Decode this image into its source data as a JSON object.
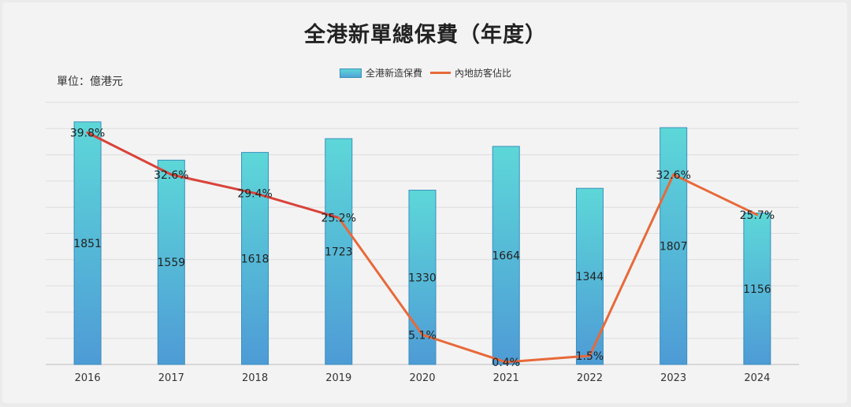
{
  "title": "全港新單總保費（年度）",
  "unit_label": "單位：億港元",
  "legend": {
    "bar_label": "全港新造保費",
    "line_label": "內地訪客佔比"
  },
  "colors": {
    "bar_top": "#5dd7d8",
    "bar_bottom": "#4e9bd6",
    "bar_border": "#3b8fbc",
    "line": "#e8693a",
    "line_early": "#d9433a"
  },
  "chart_data": {
    "type": "bar",
    "categories": [
      "2016",
      "2017",
      "2018",
      "2019",
      "2020",
      "2021",
      "2022",
      "2023",
      "2024"
    ],
    "series": [
      {
        "name": "全港新造保費",
        "type": "bar",
        "values": [
          1851,
          1559,
          1618,
          1723,
          1330,
          1664,
          1344,
          1807,
          1156
        ],
        "labels": [
          "1851",
          "1559",
          "1618",
          "1723",
          "1330",
          "1664",
          "1344",
          "1807",
          "1156"
        ]
      },
      {
        "name": "內地訪客佔比",
        "type": "line",
        "values": [
          39.8,
          32.6,
          29.4,
          25.2,
          5.1,
          0.4,
          1.5,
          32.6,
          25.7
        ],
        "labels": [
          "39.8%",
          "32.6%",
          "29.4%",
          "25.2%",
          "5.1%",
          "0.4%",
          "1.5%",
          "32.6%",
          "25.7%"
        ]
      }
    ],
    "ylim": [
      0,
      2000
    ],
    "y2lim": [
      0,
      45
    ],
    "gridlines": 10,
    "grid": true,
    "legend_position": "top-center"
  }
}
